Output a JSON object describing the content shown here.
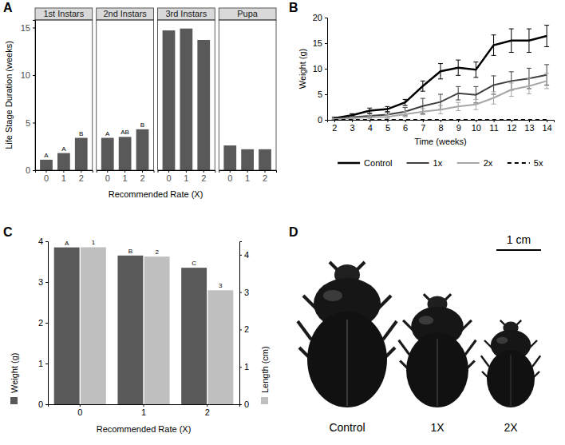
{
  "chart_data": [
    {
      "type": "bar",
      "panel": "A",
      "categories": [
        0,
        1,
        2
      ],
      "facets": [
        {
          "title": "1st Instars",
          "values": [
            1.1,
            1.8,
            3.4
          ],
          "letters": [
            "A",
            "A",
            "B"
          ]
        },
        {
          "title": "2nd Instars",
          "values": [
            3.4,
            3.5,
            4.3
          ],
          "letters": [
            "A",
            "AB",
            "B"
          ]
        },
        {
          "title": "3rd Instars",
          "values": [
            14.7,
            14.9,
            13.7
          ]
        },
        {
          "title": "Pupa",
          "values": [
            2.6,
            2.2,
            2.2
          ]
        }
      ],
      "x_label": "Recommended Rate (X)",
      "y_label": "Life Stage Duration (weeks)",
      "ylim": [
        0,
        15.8
      ],
      "yticks": [
        0,
        5,
        10,
        15
      ],
      "color": "#595959"
    },
    {
      "type": "line",
      "panel": "B",
      "x": [
        2,
        3,
        4,
        5,
        6,
        7,
        8,
        9,
        10,
        11,
        12,
        13,
        14
      ],
      "xlim": [
        1.6,
        14.4
      ],
      "xticks": [
        2,
        3,
        4,
        5,
        6,
        7,
        8,
        9,
        10,
        11,
        12,
        13,
        14
      ],
      "ylim": [
        0,
        20
      ],
      "yticks": [
        0,
        5,
        10,
        15,
        20
      ],
      "x_label": "Time (weeks)",
      "y_label": "Weight (g)",
      "legend": "bottom",
      "series": [
        {
          "name": "Control",
          "color": "#000000",
          "line_style": "solid",
          "values": [
            0.3,
            0.9,
            1.8,
            2.1,
            3.4,
            6.6,
            9.5,
            10.2,
            9.8,
            14.6,
            15.5,
            15.5,
            16.4
          ],
          "errors": [
            0.2,
            0.3,
            0.5,
            0.5,
            0.6,
            1.0,
            1.5,
            1.5,
            1.5,
            2.0,
            2.3,
            2.3,
            2.1
          ]
        },
        {
          "name": "1x",
          "color": "#404040",
          "line_style": "solid",
          "values": [
            0.2,
            0.5,
            0.8,
            1.0,
            1.6,
            2.7,
            3.5,
            5.2,
            4.9,
            6.8,
            7.6,
            8.1,
            8.8
          ],
          "errors": [
            0.1,
            0.2,
            0.4,
            0.5,
            0.8,
            1.5,
            1.5,
            1.3,
            1.6,
            1.8,
            1.8,
            2.0,
            2.0
          ]
        },
        {
          "name": "2x",
          "color": "#a6a6a6",
          "line_style": "solid",
          "values": [
            0.1,
            0.3,
            0.5,
            0.6,
            1.1,
            1.6,
            2.0,
            2.6,
            3.0,
            4.3,
            5.9,
            6.6,
            7.6
          ],
          "errors": [
            0.1,
            0.2,
            0.3,
            0.4,
            0.5,
            0.6,
            0.8,
            0.8,
            1.0,
            1.2,
            1.3,
            1.5,
            1.5
          ]
        },
        {
          "name": "5x",
          "color": "#000000",
          "line_style": "dashed",
          "values": [
            0,
            0,
            0,
            0,
            0,
            0,
            0,
            0,
            0,
            0,
            0,
            0,
            0
          ]
        }
      ]
    },
    {
      "type": "bar",
      "panel": "C",
      "categories": [
        0,
        1,
        2
      ],
      "x_label": "Recommended Rate (X)",
      "ylim": [
        0,
        4
      ],
      "yticks": [
        0,
        1,
        2,
        3,
        4
      ],
      "y2lim": [
        0,
        4.36
      ],
      "y2ticks": [
        0,
        1,
        2,
        3,
        4
      ],
      "series": [
        {
          "name": "Weight (g)",
          "color": "#595959",
          "values": [
            3.85,
            3.65,
            3.35
          ],
          "letters": [
            "A",
            "B",
            "C"
          ]
        },
        {
          "name": "Length (cm)",
          "color": "#bfbfbf",
          "axis": "y2",
          "values": [
            4.2,
            3.95,
            3.05
          ],
          "letters": [
            "1",
            "2",
            "3"
          ]
        }
      ]
    }
  ],
  "photo": {
    "panel": "D",
    "scale_label": "1 cm",
    "labels": [
      "Control",
      "1X",
      "2X"
    ]
  }
}
